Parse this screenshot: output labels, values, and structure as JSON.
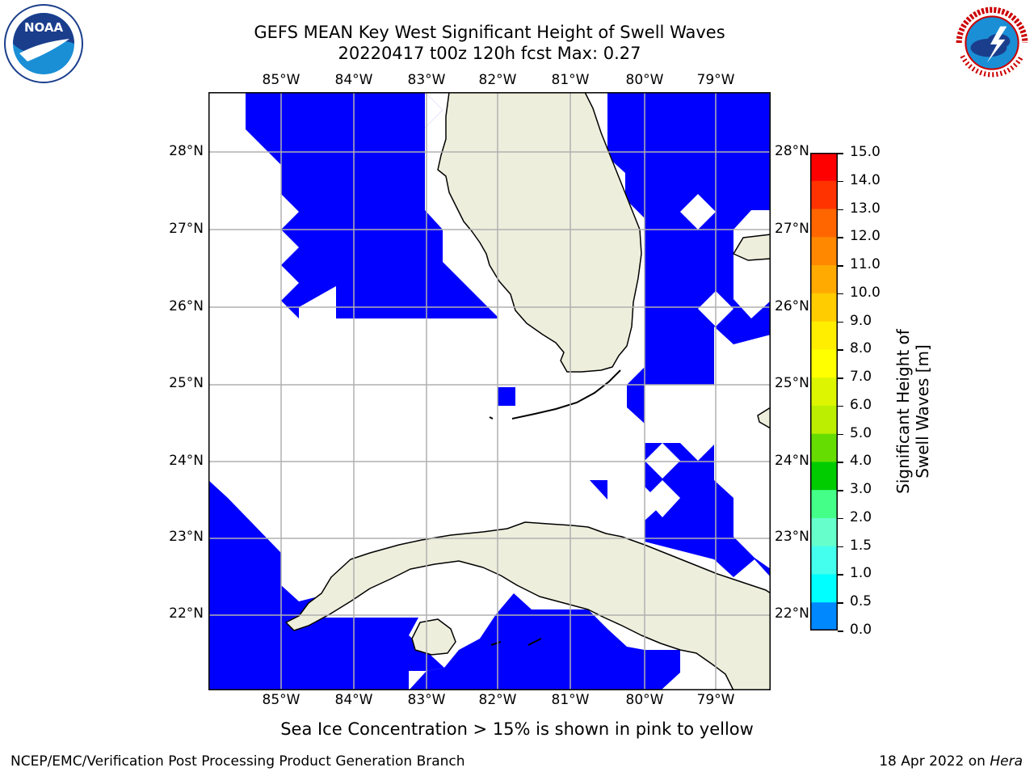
{
  "title_line1": "GEFS MEAN Key West Significant Height of Swell Waves",
  "title_line2": "20220417 t00z 120h fcst   Max: 0.27",
  "lon_labels": [
    "85°W",
    "84°W",
    "83°W",
    "82°W",
    "81°W",
    "80°W",
    "79°W"
  ],
  "lat_labels": [
    "28°N",
    "27°N",
    "26°N",
    "25°N",
    "24°N",
    "23°N",
    "22°N"
  ],
  "colorbar": {
    "ticks": [
      "15.0",
      "14.0",
      "13.0",
      "12.0",
      "11.0",
      "10.0",
      "9.0",
      "8.0",
      "7.0",
      "6.0",
      "5.0",
      "4.0",
      "3.0",
      "2.0",
      "1.5",
      "1.0",
      "0.5",
      "0.0"
    ],
    "colors": [
      "#ff0000",
      "#ff3300",
      "#ff6600",
      "#ff8800",
      "#ffaa00",
      "#ffcc00",
      "#ffee00",
      "#ffff00",
      "#ddf500",
      "#bbee00",
      "#66dd00",
      "#00cc00",
      "#44ff88",
      "#66ffcc",
      "#44ffee",
      "#00ffff",
      "#0088ff",
      "#0000ff"
    ],
    "label": "Significant Height of Swell Waves [m]"
  },
  "colors": {
    "land": "#eeeedd",
    "swell_low": "#0000ff",
    "grid": "#b0b0b0"
  },
  "note": "Sea Ice Concentration > 15% is shown in pink to yellow",
  "footer_left": "NCEP/EMC/Verification Post Processing Product Generation Branch",
  "footer_date": "18 Apr 2022 on ",
  "footer_machine": "Hera",
  "icons": {
    "left_logo": "noaa-logo",
    "right_logo": "nws-logo"
  }
}
